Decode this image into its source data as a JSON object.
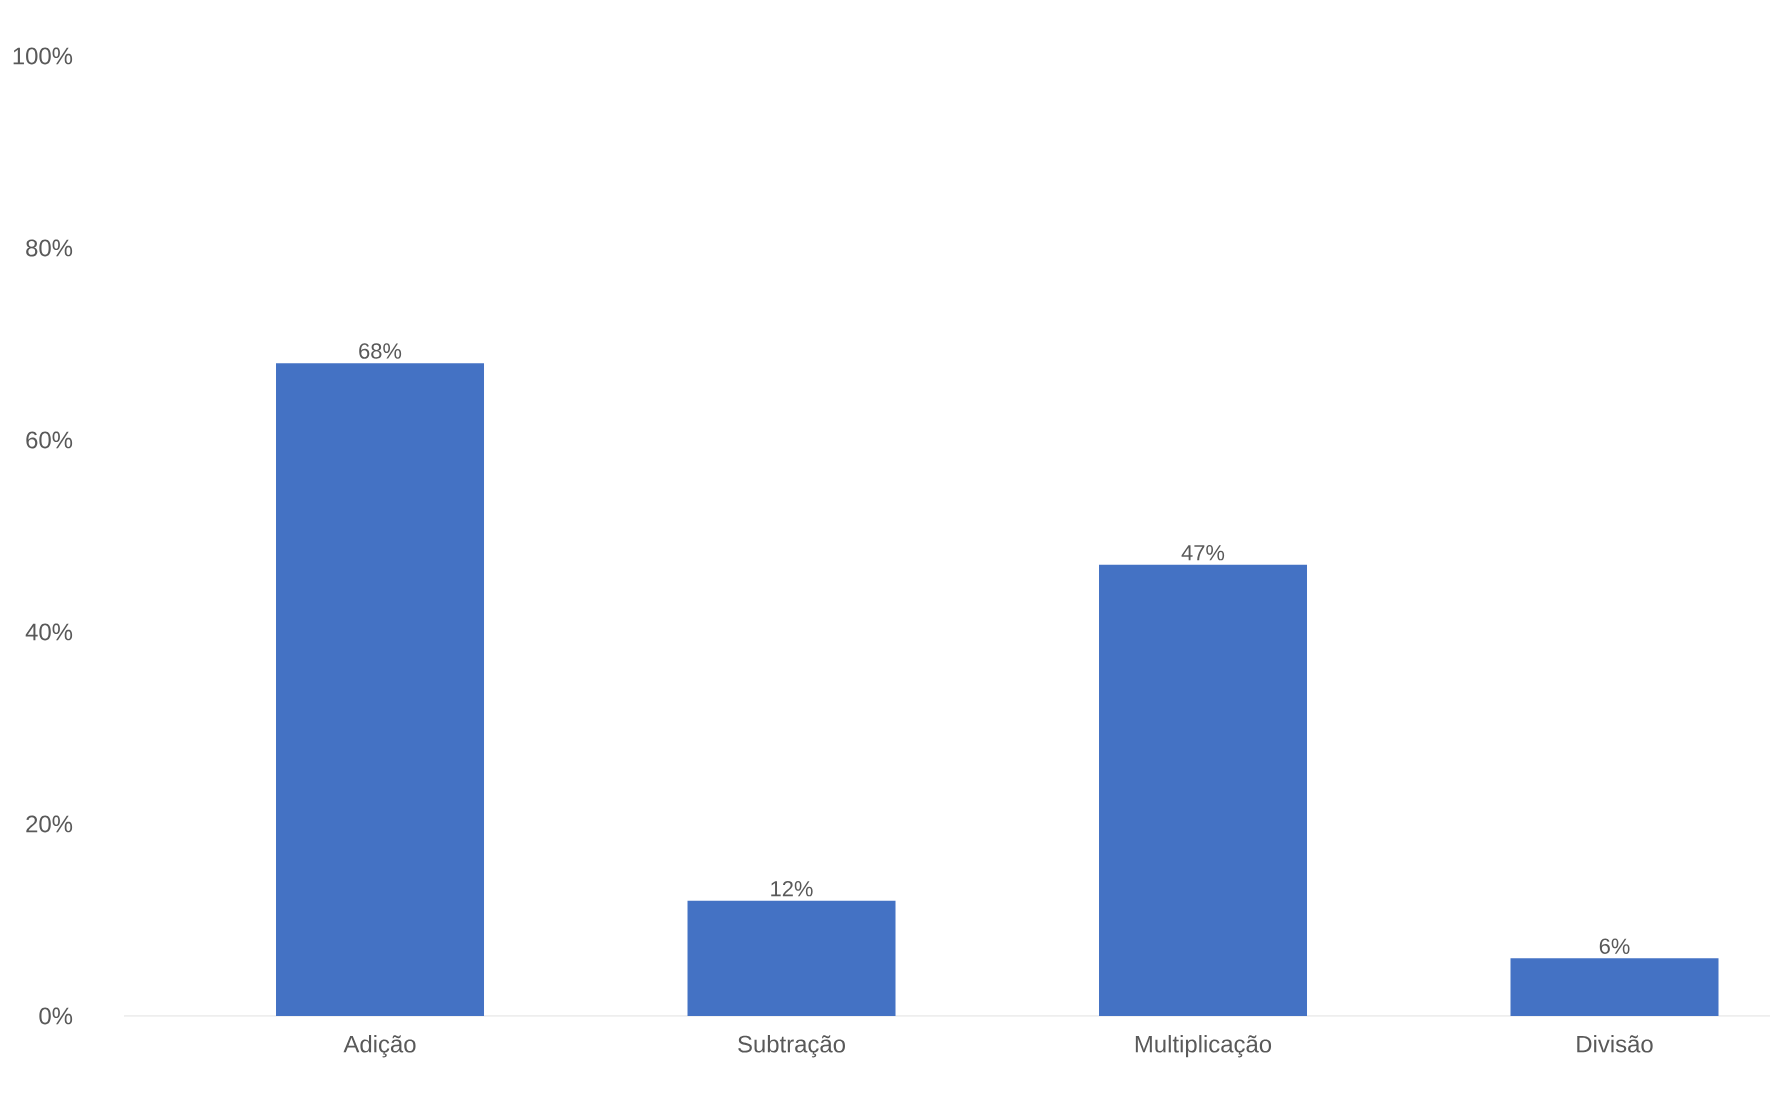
{
  "chart_data": {
    "type": "bar",
    "categories": [
      "Adição",
      "Subtração",
      "Multiplicação",
      "Divisão"
    ],
    "values": [
      68,
      12,
      47,
      6
    ],
    "value_labels": [
      "68%",
      "12%",
      "47%",
      "6%"
    ],
    "color": "#4472c4",
    "ylim": [
      0,
      100
    ],
    "yticks": [
      {
        "value": 0,
        "label": "0%"
      },
      {
        "value": 20,
        "label": "20%"
      },
      {
        "value": 40,
        "label": "40%"
      },
      {
        "value": 60,
        "label": "60%"
      },
      {
        "value": 80,
        "label": "80%"
      },
      {
        "value": 100,
        "label": "100%"
      }
    ]
  }
}
